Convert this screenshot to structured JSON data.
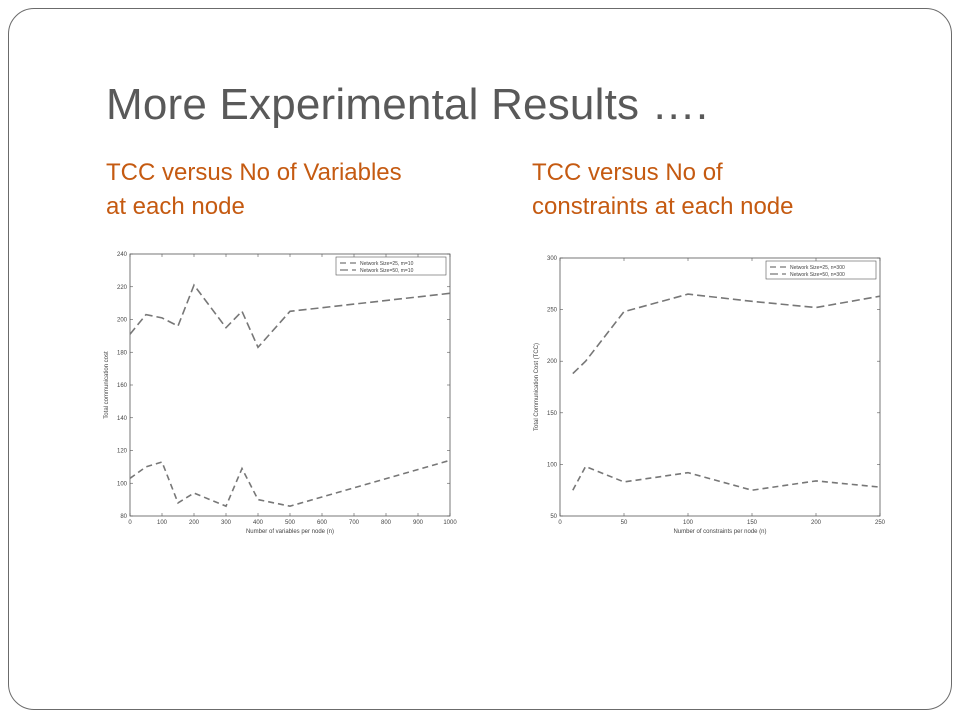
{
  "slide": {
    "title": "More Experimental Results ….",
    "left_caption": "TCC versus No of Variables\nat each node",
    "right_caption": "TCC versus No of\nconstraints at each node"
  },
  "colors": {
    "title": "#595959",
    "caption": "#c55a11",
    "line": "#777777",
    "frame": "#6b6b6b"
  },
  "chart_data": [
    {
      "type": "line",
      "xlabel": "Number of variables per node (n)",
      "ylabel": "Total communication cost",
      "xlim": [
        0,
        1000
      ],
      "ylim": [
        80,
        240
      ],
      "xticks": [
        0,
        100,
        200,
        300,
        400,
        500,
        600,
        700,
        800,
        900,
        1000
      ],
      "yticks": [
        80,
        100,
        120,
        140,
        160,
        180,
        200,
        220,
        240
      ],
      "grid": false,
      "legend": "top-right",
      "series": [
        {
          "name": "Network Size=25, m=10",
          "x": [
            0,
            50,
            100,
            150,
            200,
            250,
            300,
            350,
            400,
            500,
            1000
          ],
          "y": [
            103,
            110,
            113,
            88,
            94,
            90,
            86,
            109,
            90,
            86,
            114
          ]
        },
        {
          "name": "Network Size=50, m=10",
          "x": [
            0,
            50,
            100,
            150,
            200,
            250,
            300,
            350,
            400,
            500,
            1000
          ],
          "y": [
            191,
            203,
            201,
            196,
            221,
            208,
            195,
            205,
            183,
            205,
            216
          ]
        }
      ]
    },
    {
      "type": "line",
      "xlabel": "Number of constraints per node (n)",
      "ylabel": "Total Communication Cost (TCC)",
      "xlim": [
        0,
        250
      ],
      "ylim": [
        50,
        300
      ],
      "xticks": [
        0,
        50,
        100,
        150,
        200,
        250
      ],
      "yticks": [
        50,
        100,
        150,
        200,
        250,
        300
      ],
      "grid": false,
      "legend": "top-right",
      "series": [
        {
          "name": "Network Size=25, n=300",
          "x": [
            10,
            20,
            50,
            100,
            150,
            200,
            250
          ],
          "y": [
            75,
            98,
            83,
            92,
            75,
            84,
            78
          ]
        },
        {
          "name": "Network Size=50, n=300",
          "x": [
            10,
            20,
            50,
            100,
            150,
            200,
            250
          ],
          "y": [
            188,
            200,
            248,
            265,
            258,
            252,
            263
          ]
        }
      ]
    }
  ]
}
